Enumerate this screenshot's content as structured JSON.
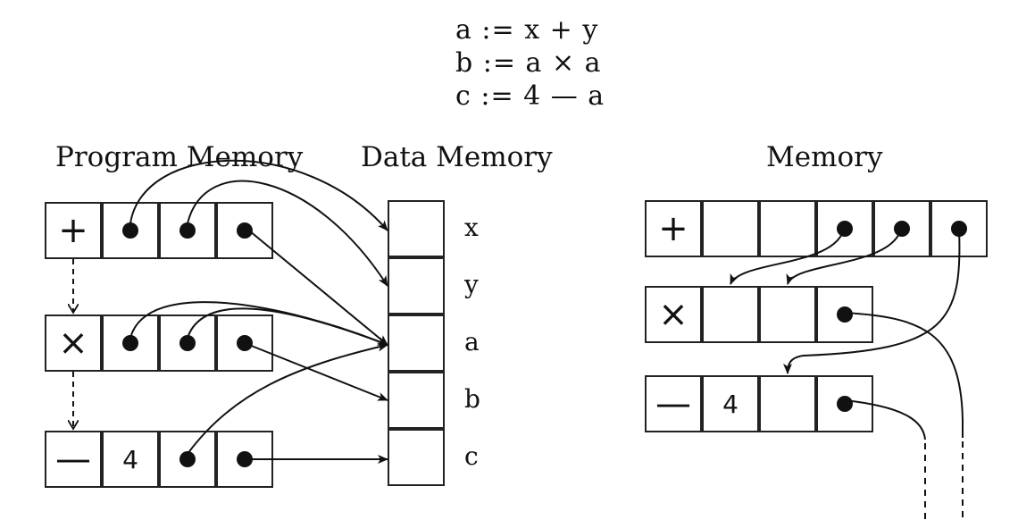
{
  "code": {
    "lines": [
      "a := x + y",
      "b := a × a",
      "c := 4 — a"
    ]
  },
  "left": {
    "program_memory_title": "Program Memory",
    "data_memory_title": "Data Memory",
    "rows": [
      {
        "op": "+",
        "cells": [
          "dot",
          "dot",
          "dot"
        ]
      },
      {
        "op": "×",
        "cells": [
          "dot",
          "dot",
          "dot"
        ]
      },
      {
        "op": "—",
        "cells": [
          "4",
          "dot",
          "dot"
        ]
      }
    ],
    "data_labels": [
      "x",
      "y",
      "a",
      "b",
      "c"
    ]
  },
  "right": {
    "title": "Memory",
    "row1": {
      "op": "+"
    },
    "row2": {
      "op": "×"
    },
    "row3": {
      "op": "—",
      "num": "4"
    }
  }
}
